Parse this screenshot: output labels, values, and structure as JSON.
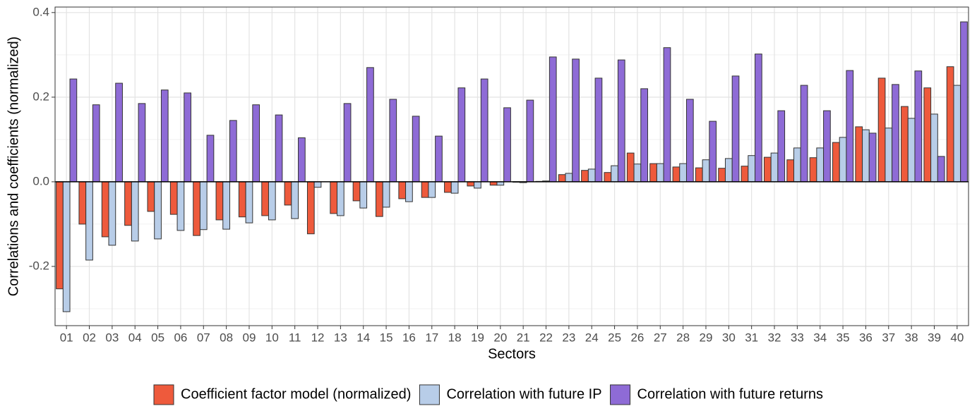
{
  "chart_data": {
    "type": "bar",
    "x_label": "Sectors",
    "y_label": "Correlations and coefficients (normalized)",
    "categories": [
      "01",
      "02",
      "03",
      "04",
      "05",
      "06",
      "07",
      "08",
      "09",
      "10",
      "11",
      "12",
      "13",
      "14",
      "15",
      "16",
      "17",
      "18",
      "19",
      "20",
      "21",
      "22",
      "23",
      "24",
      "25",
      "26",
      "27",
      "28",
      "29",
      "30",
      "31",
      "32",
      "33",
      "34",
      "35",
      "36",
      "37",
      "38",
      "39",
      "40"
    ],
    "series": [
      {
        "name": "Coefficient factor model (normalized)",
        "color": "#ee5a3c",
        "values": [
          -0.253,
          -0.1,
          -0.13,
          -0.103,
          -0.07,
          -0.077,
          -0.127,
          -0.09,
          -0.083,
          -0.08,
          -0.055,
          -0.123,
          -0.075,
          -0.045,
          -0.082,
          -0.04,
          -0.037,
          -0.025,
          -0.01,
          -0.008,
          -0.001,
          0.001,
          0.017,
          0.027,
          0.022,
          0.068,
          0.043,
          0.035,
          0.033,
          0.032,
          0.037,
          0.058,
          0.052,
          0.057,
          0.093,
          0.13,
          0.245,
          0.178,
          0.222,
          0.272
        ]
      },
      {
        "name": "Correlation with future IP",
        "color": "#b8cde8",
        "values": [
          -0.307,
          -0.185,
          -0.15,
          -0.14,
          -0.135,
          -0.115,
          -0.113,
          -0.112,
          -0.097,
          -0.09,
          -0.087,
          -0.013,
          -0.08,
          -0.062,
          -0.06,
          -0.047,
          -0.037,
          -0.027,
          -0.015,
          -0.008,
          -0.002,
          0.002,
          0.02,
          0.03,
          0.038,
          0.042,
          0.043,
          0.043,
          0.052,
          0.055,
          0.062,
          0.068,
          0.08,
          0.08,
          0.105,
          0.123,
          0.127,
          0.15,
          0.16,
          0.228
        ]
      },
      {
        "name": "Correlation with future returns",
        "color": "#8e6bd6",
        "values": [
          0.243,
          0.182,
          0.233,
          0.185,
          0.217,
          0.21,
          0.11,
          0.145,
          0.182,
          0.158,
          0.104,
          0,
          0.185,
          0.27,
          0.195,
          0.155,
          0.108,
          0.222,
          0.243,
          0.175,
          0.193,
          0.295,
          0.29,
          0.245,
          0.288,
          0.22,
          0.317,
          0.195,
          0.143,
          0.25,
          0.302,
          0.168,
          0.228,
          0.168,
          0.263,
          0.115,
          0.23,
          0.262,
          0.06,
          0.378
        ]
      }
    ],
    "ylim": [
      -0.34,
      0.413
    ],
    "yticks": [
      -0.2,
      {
        "value": 0,
        "label": "0.0"
      },
      {
        "value": 0.2,
        "label": "0.2"
      },
      {
        "value": 0.4,
        "label": "0.4"
      }
    ],
    "minor_yticks": [
      -0.3,
      -0.1,
      0.1,
      0.3
    ],
    "grid": true,
    "legend": "bottom"
  }
}
